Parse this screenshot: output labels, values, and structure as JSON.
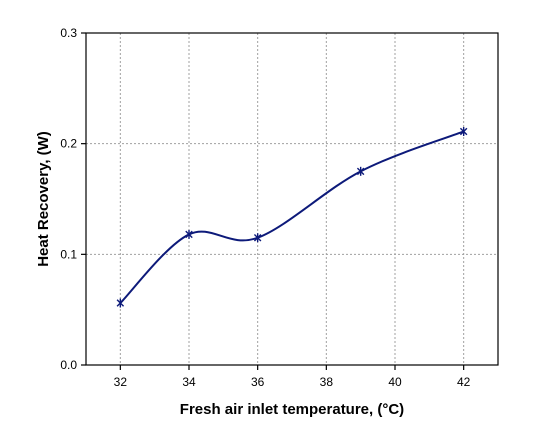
{
  "chart_data": {
    "type": "line",
    "xlabel": "Fresh air inlet temperature, (°C)",
    "ylabel": "Heat Recovery, (W)",
    "xlim": [
      31,
      43
    ],
    "ylim": [
      0.0,
      0.3
    ],
    "xticks": [
      32,
      34,
      36,
      38,
      40,
      42
    ],
    "yticks": [
      0.0,
      0.1,
      0.2,
      0.3
    ],
    "xtick_labels": [
      "32",
      "34",
      "36",
      "38",
      "40",
      "42"
    ],
    "ytick_labels": [
      "0.0",
      "0.1",
      "0.2",
      "0.3"
    ],
    "grid": true,
    "series": [
      {
        "x": [
          32,
          34,
          36,
          39,
          42
        ],
        "y": [
          0.056,
          0.118,
          0.115,
          0.175,
          0.211
        ],
        "marker": "asterisk",
        "color": "#0d1a7a",
        "smooth": true
      }
    ]
  }
}
